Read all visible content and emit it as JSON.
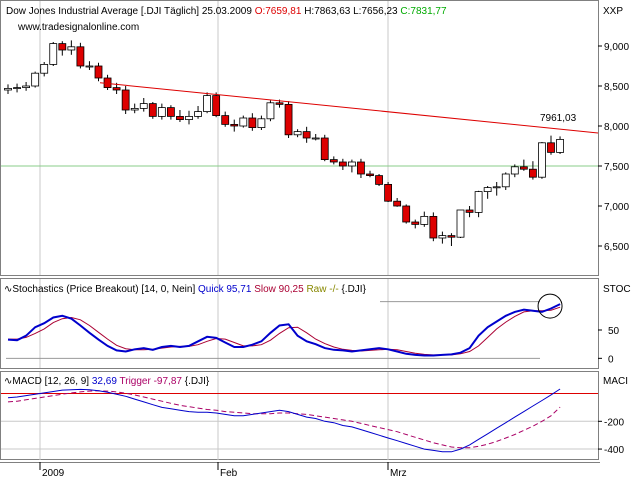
{
  "header": {
    "instrument": "Dow Jones Industrial Average [.DJI  Täglich]",
    "date": "25.03.2009",
    "open": "O:7659,81",
    "high": "H:7863,63",
    "low": "L:7656,23",
    "close": "C:7831,77",
    "watermark": "www.tradesignalonline.com",
    "axis_tag": "XXP"
  },
  "stoch": {
    "title": "Stochastics (Price Breakout) [14, 0, Nein]",
    "quick": "Quick 95,71",
    "slow": "Slow 90,25",
    "raw": "Raw -/-",
    "tail": "{.DJI}",
    "axis_tag": "STOC"
  },
  "macd": {
    "title": "MACD [12, 26, 9]",
    "value": "32,69",
    "trigger": "Trigger -97,87",
    "tail": "{.DJI}",
    "axis_tag": "MACI"
  },
  "x_labels": [
    "2009",
    "Feb",
    "Mrz"
  ],
  "price_label": "7961,03",
  "colors": {
    "up": "#ffffff",
    "down": "#dd0000",
    "trend": "#dd0000",
    "quick": "#0000cc",
    "slow": "#aa0033",
    "macd": "#0000cc",
    "trigger": "#aa0066",
    "grid": "#c8c8c8",
    "close": "#00aa00"
  },
  "chart_data": [
    {
      "type": "candlestick",
      "title": "Dow Jones Industrial Average [.DJI  Täglich]",
      "x": [
        "2008-12-24",
        "2008-12-26",
        "2008-12-29",
        "2008-12-30",
        "2008-12-31",
        "2009-01-02",
        "2009-01-05",
        "2009-01-06",
        "2009-01-07",
        "2009-01-08",
        "2009-01-09",
        "2009-01-12",
        "2009-01-13",
        "2009-01-14",
        "2009-01-15",
        "2009-01-16",
        "2009-01-20",
        "2009-01-21",
        "2009-01-22",
        "2009-01-23",
        "2009-01-26",
        "2009-01-27",
        "2009-01-28",
        "2009-01-29",
        "2009-01-30",
        "2009-02-02",
        "2009-02-03",
        "2009-02-04",
        "2009-02-05",
        "2009-02-06",
        "2009-02-09",
        "2009-02-10",
        "2009-02-11",
        "2009-02-12",
        "2009-02-13",
        "2009-02-17",
        "2009-02-18",
        "2009-02-19",
        "2009-02-20",
        "2009-02-23",
        "2009-02-24",
        "2009-02-25",
        "2009-02-26",
        "2009-02-27",
        "2009-03-02",
        "2009-03-03",
        "2009-03-04",
        "2009-03-05",
        "2009-03-06",
        "2009-03-09",
        "2009-03-10",
        "2009-03-11",
        "2009-03-12",
        "2009-03-13",
        "2009-03-16",
        "2009-03-17",
        "2009-03-18",
        "2009-03-19",
        "2009-03-20",
        "2009-03-23",
        "2009-03-24",
        "2009-03-25"
      ],
      "open": [
        8450,
        8470,
        8480,
        8500,
        8660,
        8770,
        9030,
        8950,
        8990,
        8750,
        8750,
        8600,
        8480,
        8450,
        8200,
        8220,
        8280,
        8120,
        8230,
        8120,
        8080,
        8120,
        8180,
        8380,
        8130,
        8020,
        8000,
        8100,
        7980,
        8090,
        8290,
        8270,
        7890,
        7930,
        7850,
        7850,
        7580,
        7550,
        7500,
        7550,
        7400,
        7380,
        7270,
        7060,
        7000,
        6800,
        6770,
        6870,
        6600,
        6630,
        6610,
        6950,
        6920,
        7180,
        7230,
        7240,
        7400,
        7490,
        7460,
        7360,
        7790,
        7670
      ],
      "high": [
        8520,
        8530,
        8550,
        8680,
        8800,
        9050,
        9060,
        9070,
        9040,
        8810,
        8790,
        8640,
        8540,
        8500,
        8280,
        8350,
        8300,
        8280,
        8260,
        8200,
        8190,
        8250,
        8420,
        8420,
        8180,
        8080,
        8130,
        8160,
        8130,
        8320,
        8330,
        8310,
        7960,
        7990,
        7900,
        7890,
        7620,
        7590,
        7580,
        7590,
        7440,
        7400,
        7300,
        7100,
        7020,
        6830,
        6930,
        6920,
        6680,
        6660,
        6950,
        7000,
        7190,
        7250,
        7300,
        7420,
        7520,
        7580,
        7560,
        7800,
        7880,
        7870
      ],
      "low": [
        8400,
        8420,
        8440,
        8480,
        8620,
        8750,
        8880,
        8890,
        8720,
        8700,
        8560,
        8450,
        8400,
        8150,
        8160,
        8180,
        8090,
        8080,
        8080,
        8050,
        8020,
        8090,
        8160,
        8110,
        7990,
        7930,
        7980,
        7940,
        7950,
        8060,
        8230,
        7850,
        7860,
        7790,
        7820,
        7560,
        7520,
        7450,
        7420,
        7350,
        7360,
        7250,
        7050,
        6990,
        6780,
        6720,
        6740,
        6560,
        6530,
        6500,
        6600,
        6860,
        6860,
        7090,
        7130,
        7200,
        7360,
        7440,
        7330,
        7340,
        7640,
        7650
      ],
      "close": [
        8470,
        8480,
        8500,
        8660,
        8770,
        9030,
        8950,
        8990,
        8750,
        8750,
        8600,
        8480,
        8450,
        8200,
        8220,
        8280,
        8120,
        8230,
        8120,
        8080,
        8120,
        8180,
        8380,
        8130,
        8020,
        8000,
        8100,
        7980,
        8090,
        8290,
        8270,
        7890,
        7930,
        7850,
        7850,
        7580,
        7550,
        7500,
        7550,
        7400,
        7380,
        7270,
        7060,
        7000,
        6800,
        6770,
        6870,
        6600,
        6630,
        6610,
        6950,
        6920,
        7180,
        7230,
        7240,
        7400,
        7490,
        7460,
        7360,
        7790,
        7670,
        7832
      ],
      "trendline": [
        {
          "x": "2009-01-13",
          "y": 8520
        },
        {
          "x": "2009-03-25",
          "y": 7961
        }
      ],
      "horizontal_line": 7500,
      "ylim": [
        6200,
        9200
      ],
      "y_ticks": [
        6500,
        7000,
        7500,
        8000,
        8500,
        9000
      ]
    },
    {
      "type": "line",
      "title": "Stochastics (Price Breakout) [14, 0, Nein]",
      "series": [
        {
          "name": "Quick",
          "values": [
            33,
            32,
            40,
            55,
            62,
            72,
            75,
            70,
            58,
            45,
            33,
            22,
            14,
            12,
            16,
            18,
            15,
            20,
            22,
            20,
            22,
            30,
            38,
            36,
            28,
            20,
            20,
            24,
            30,
            45,
            58,
            60,
            40,
            30,
            25,
            18,
            15,
            14,
            12,
            14,
            16,
            18,
            16,
            12,
            8,
            6,
            5,
            5,
            6,
            7,
            10,
            18,
            40,
            55,
            65,
            75,
            82,
            86,
            84,
            82,
            88,
            95.71
          ]
        },
        {
          "name": "Slow",
          "values": [
            34,
            34,
            37,
            44,
            52,
            63,
            70,
            72,
            68,
            58,
            46,
            34,
            23,
            17,
            15,
            15,
            16,
            18,
            20,
            21,
            21,
            24,
            30,
            35,
            34,
            28,
            22,
            22,
            24,
            32,
            44,
            54,
            55,
            45,
            34,
            26,
            20,
            16,
            14,
            13,
            14,
            15,
            16,
            15,
            12,
            9,
            7,
            6,
            6,
            6,
            8,
            12,
            22,
            37,
            52,
            64,
            74,
            82,
            84,
            84,
            85,
            90.25
          ]
        }
      ],
      "ylim": [
        -10,
        110
      ],
      "y_ticks": [
        0,
        50
      ]
    },
    {
      "type": "line",
      "title": "MACD [12, 26, 9]",
      "series": [
        {
          "name": "MACD",
          "values": [
            -30,
            -25,
            -15,
            -5,
            5,
            15,
            25,
            28,
            30,
            28,
            20,
            10,
            -5,
            -20,
            -40,
            -60,
            -80,
            -100,
            -110,
            -120,
            -130,
            -135,
            -135,
            -140,
            -150,
            -160,
            -160,
            -150,
            -140,
            -130,
            -120,
            -130,
            -150,
            -170,
            -180,
            -200,
            -210,
            -230,
            -240,
            -260,
            -280,
            -300,
            -320,
            -340,
            -360,
            -380,
            -400,
            -410,
            -420,
            -420,
            -400,
            -370,
            -330,
            -290,
            -250,
            -210,
            -170,
            -130,
            -90,
            -50,
            -10,
            32.69
          ]
        },
        {
          "name": "Trigger",
          "values": [
            -60,
            -55,
            -45,
            -35,
            -25,
            -15,
            -5,
            5,
            12,
            18,
            20,
            18,
            12,
            2,
            -10,
            -25,
            -40,
            -55,
            -70,
            -85,
            -95,
            -105,
            -115,
            -120,
            -130,
            -135,
            -140,
            -145,
            -145,
            -145,
            -140,
            -140,
            -145,
            -150,
            -160,
            -170,
            -180,
            -190,
            -200,
            -215,
            -230,
            -245,
            -260,
            -275,
            -295,
            -315,
            -335,
            -355,
            -370,
            -385,
            -390,
            -390,
            -380,
            -365,
            -345,
            -320,
            -295,
            -265,
            -235,
            -200,
            -160,
            -97.87
          ]
        }
      ],
      "reference_line": 0,
      "ylim": [
        -450,
        40
      ],
      "y_ticks": [
        -200,
        -400
      ]
    }
  ]
}
